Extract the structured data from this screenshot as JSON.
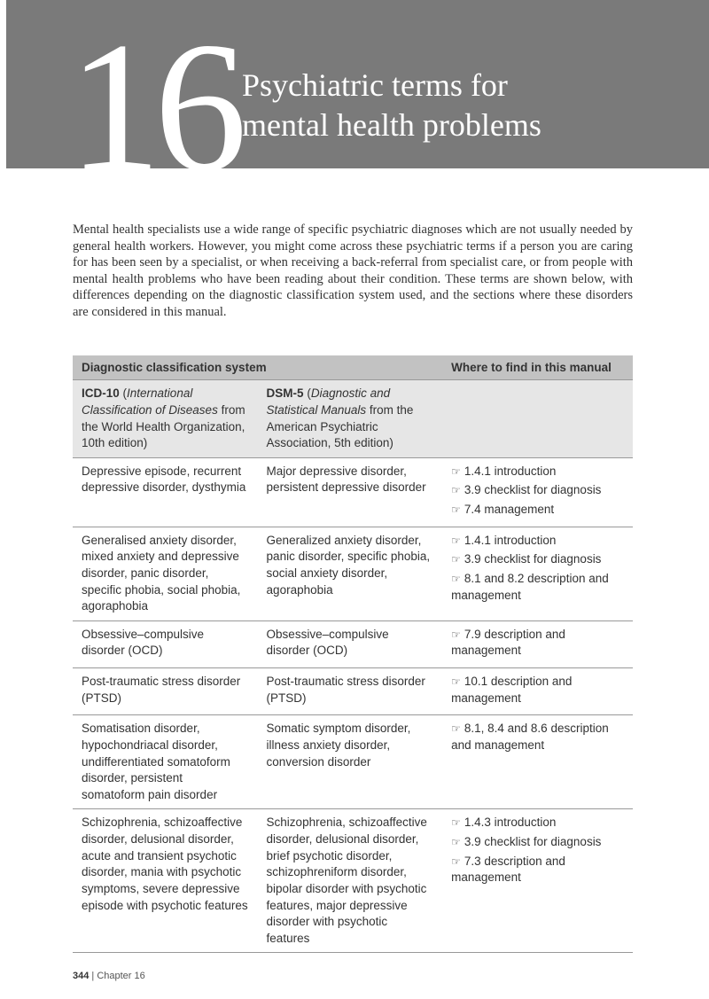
{
  "header": {
    "chapter_number": "16",
    "title_line1": "Psychiatric terms for",
    "title_line2": "mental health problems"
  },
  "intro": "Mental health specialists use a wide range of specific psychiatric diagnoses which are not usually needed by general health workers. However, you might come across these psychiatric terms if a person you are caring for has been seen by a specialist, or when receiving a back-referral from specialist care, or from people with mental health problems who have been reading about their condition. These terms are shown below, with differences depending on the diagnostic classification system used, and the sections where these disorders are considered in this manual.",
  "table": {
    "head_col1": "Diagnostic classification system",
    "head_col3": "Where to find in this manual",
    "subhead": {
      "icd_bold": "ICD-10",
      "icd_paren_italic": "International Classification of Diseases",
      "icd_rest": " from the World Health Organization, 10th edition)",
      "dsm_bold": "DSM-5",
      "dsm_paren_italic": "Diagnostic and Statistical Manuals",
      "dsm_rest": " from the American Psychiatric Association, 5th edition)"
    },
    "rows": [
      {
        "icd": "Depressive episode, recurrent depressive disorder, dysthymia",
        "dsm": "Major depressive disorder, persistent depressive disorder",
        "refs": [
          "1.4.1 introduction",
          "3.9 checklist for diagnosis",
          "7.4 management"
        ]
      },
      {
        "icd": "Generalised anxiety disorder, mixed anxiety and depressive disorder, panic disorder, specific phobia, social phobia, agoraphobia",
        "dsm": "Generalized anxiety disorder, panic disorder, specific phobia, social anxiety disorder, agoraphobia",
        "refs": [
          "1.4.1 introduction",
          "3.9 checklist for diagnosis",
          "8.1 and 8.2 description and management"
        ]
      },
      {
        "icd": "Obsessive–compulsive disorder (OCD)",
        "dsm": "Obsessive–compulsive disorder (OCD)",
        "refs": [
          "7.9 description and management"
        ]
      },
      {
        "icd": "Post-traumatic stress disorder (PTSD)",
        "dsm": "Post-traumatic stress disorder (PTSD)",
        "refs": [
          "10.1 description and management"
        ]
      },
      {
        "icd": "Somatisation disorder, hypochondriacal disorder, undifferentiated somatoform disorder, persistent somatoform pain disorder",
        "dsm": "Somatic symptom disorder, illness anxiety disorder, conversion disorder",
        "refs": [
          "8.1, 8.4 and 8.6 description and management"
        ]
      },
      {
        "icd": "Schizophrenia, schizoaffective disorder, delusional disorder, acute and transient psychotic disorder, mania with psychotic symptoms, severe depressive episode with psychotic features",
        "dsm": "Schizophrenia, schizoaffective disorder, delusional disorder, brief psychotic disorder, schizophreniform disorder, bipolar disorder with psychotic features, major depressive disorder with psychotic features",
        "refs": [
          "1.4.3 introduction",
          "3.9 checklist for diagnosis",
          "7.3 description and management"
        ]
      }
    ]
  },
  "footer": {
    "page": "344",
    "label": " | Chapter 16"
  },
  "colors": {
    "header_bg": "#7a7a7a",
    "thead_bg": "#c2c2c2",
    "subhead_bg": "#e6e6e6",
    "border": "#999999",
    "text": "#333333"
  }
}
